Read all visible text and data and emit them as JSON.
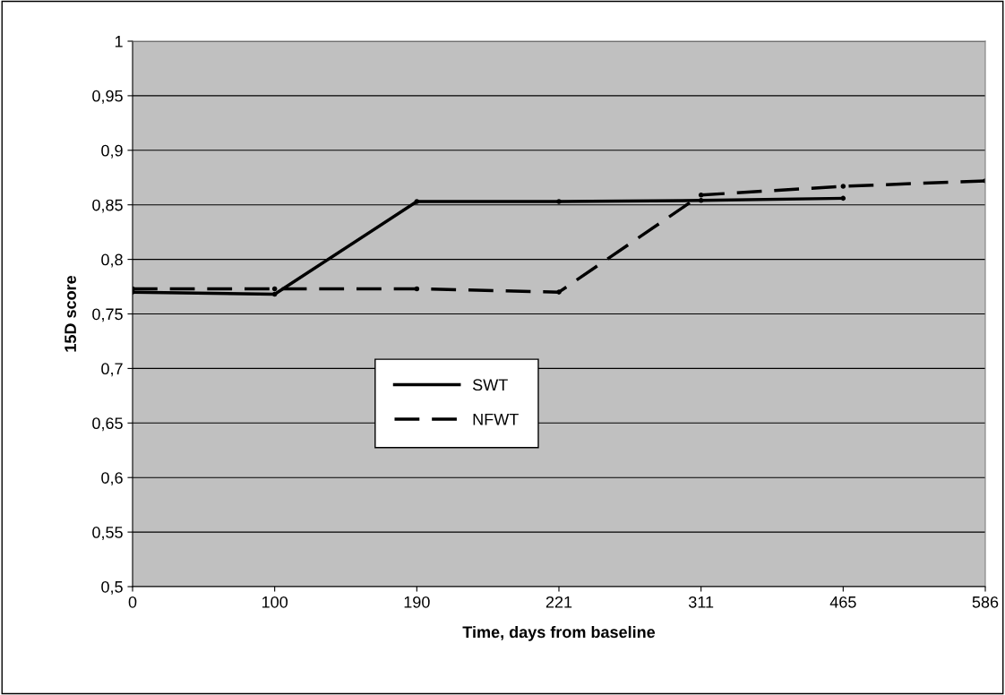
{
  "chart_data": {
    "type": "line",
    "xlabel": "Time, days from baseline",
    "ylabel": "15D score",
    "categories": [
      "0",
      "100",
      "190",
      "221",
      "311",
      "465",
      "586"
    ],
    "series": [
      {
        "name": "SWT",
        "color": "#000000",
        "line_style": "solid",
        "values": [
          0.77,
          0.768,
          0.853,
          0.853,
          0.854,
          0.856,
          null
        ]
      },
      {
        "name": "NFWT",
        "color": "#000000",
        "line_style": "dashed",
        "values": [
          0.773,
          0.773,
          0.773,
          0.77,
          0.859,
          0.867,
          0.872
        ]
      }
    ],
    "ylim": [
      0.5,
      1
    ],
    "yticks": [
      {
        "value": 0.5,
        "label": "0,5"
      },
      {
        "value": 0.55,
        "label": "0,55"
      },
      {
        "value": 0.6,
        "label": "0,6"
      },
      {
        "value": 0.65,
        "label": "0,65"
      },
      {
        "value": 0.7,
        "label": "0,7"
      },
      {
        "value": 0.75,
        "label": "0,75"
      },
      {
        "value": 0.8,
        "label": "0,8"
      },
      {
        "value": 0.85,
        "label": "0,85"
      },
      {
        "value": 0.9,
        "label": "0,9"
      },
      {
        "value": 0.95,
        "label": "0,95"
      },
      {
        "value": 1,
        "label": "1"
      }
    ],
    "grid": "y",
    "legend": "lower left",
    "marker": "circle"
  }
}
